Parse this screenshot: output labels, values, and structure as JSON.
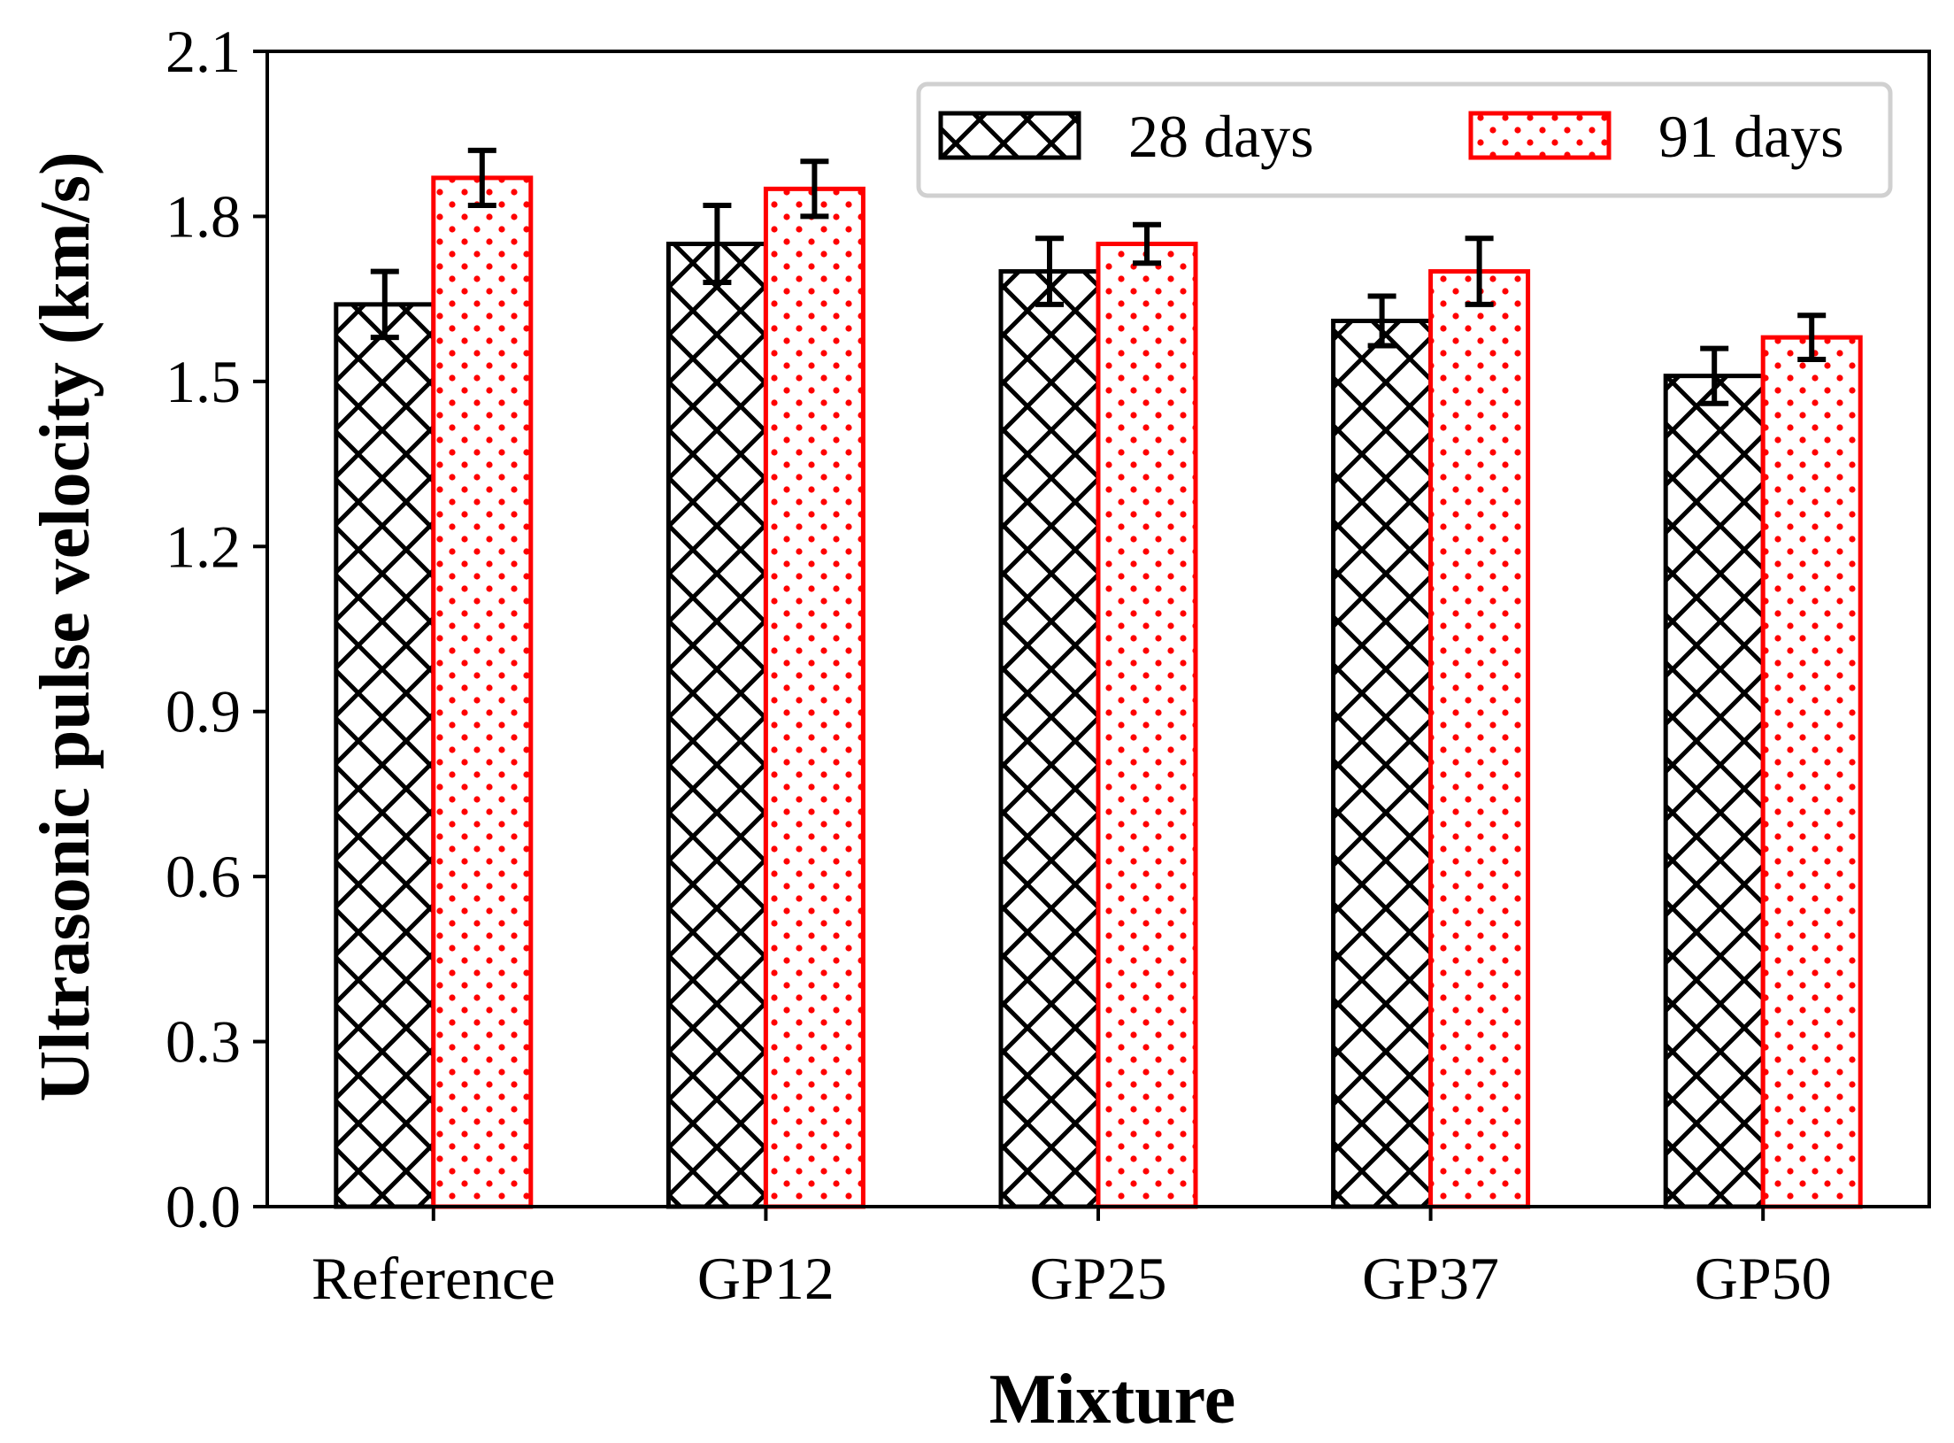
{
  "chart_data": {
    "type": "bar",
    "title": "",
    "xlabel": "Mixture",
    "ylabel": "Ultrasonic pulse velocity (km/s)",
    "categories": [
      "Reference",
      "GP12",
      "GP25",
      "GP37",
      "GP50"
    ],
    "ylim": [
      0,
      2.1
    ],
    "yticks": [
      0.0,
      0.3,
      0.6,
      0.9,
      1.2,
      1.5,
      1.8,
      2.1
    ],
    "ytick_labels": [
      "0.0",
      "0.3",
      "0.6",
      "0.9",
      "1.2",
      "1.5",
      "1.8",
      "2.1"
    ],
    "grid": false,
    "legend_position": "top-right",
    "series": [
      {
        "name": "28 days",
        "label": "28 days",
        "values": [
          1.64,
          1.75,
          1.7,
          1.61,
          1.51
        ],
        "errors": [
          0.06,
          0.07,
          0.06,
          0.045,
          0.05
        ],
        "edge_color": "#000000",
        "hatch": "cross"
      },
      {
        "name": "91 days",
        "label": "91 days",
        "values": [
          1.87,
          1.85,
          1.75,
          1.7,
          1.58
        ],
        "errors": [
          0.05,
          0.05,
          0.035,
          0.06,
          0.04
        ],
        "edge_color": "#ff0000",
        "hatch": "dots"
      }
    ]
  }
}
